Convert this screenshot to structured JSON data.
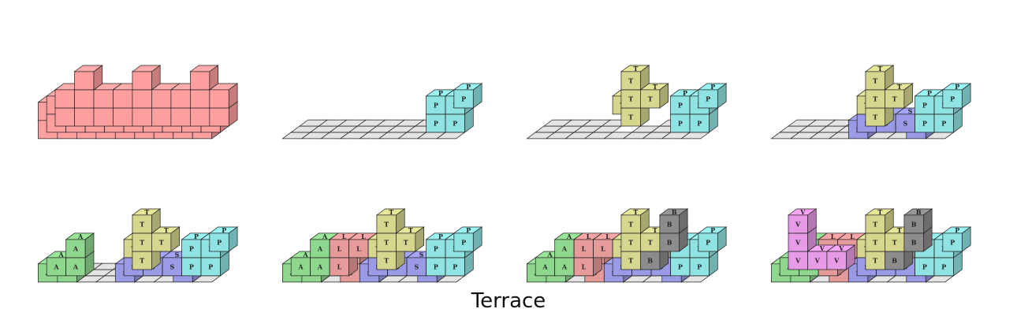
{
  "caption": "Terrace",
  "colors": {
    "target": "#ff9f9f",
    "A": "#8fd68f",
    "L": "#e79a9a",
    "T": "#d6d68f",
    "S": "#9a9ae6",
    "P": "#8fe3e3",
    "B": "#8c8c8c",
    "V": "#e79ae6",
    "grid": "#e4e4e4"
  },
  "piece_letters": [
    "P",
    "T",
    "S",
    "A",
    "L",
    "B",
    "V"
  ],
  "figures": [
    {
      "name": "target-shape",
      "pieces": [
        "target"
      ]
    },
    {
      "name": "step-1",
      "pieces": [
        "P"
      ]
    },
    {
      "name": "step-2",
      "pieces": [
        "P",
        "T"
      ]
    },
    {
      "name": "step-3",
      "pieces": [
        "P",
        "T",
        "S"
      ]
    },
    {
      "name": "step-4",
      "pieces": [
        "P",
        "T",
        "S",
        "A"
      ]
    },
    {
      "name": "step-5",
      "pieces": [
        "P",
        "T",
        "S",
        "A",
        "L"
      ]
    },
    {
      "name": "step-6",
      "pieces": [
        "P",
        "T",
        "S",
        "A",
        "L",
        "B"
      ]
    },
    {
      "name": "step-7",
      "pieces": [
        "P",
        "T",
        "S",
        "A",
        "L",
        "B",
        "V"
      ]
    }
  ]
}
